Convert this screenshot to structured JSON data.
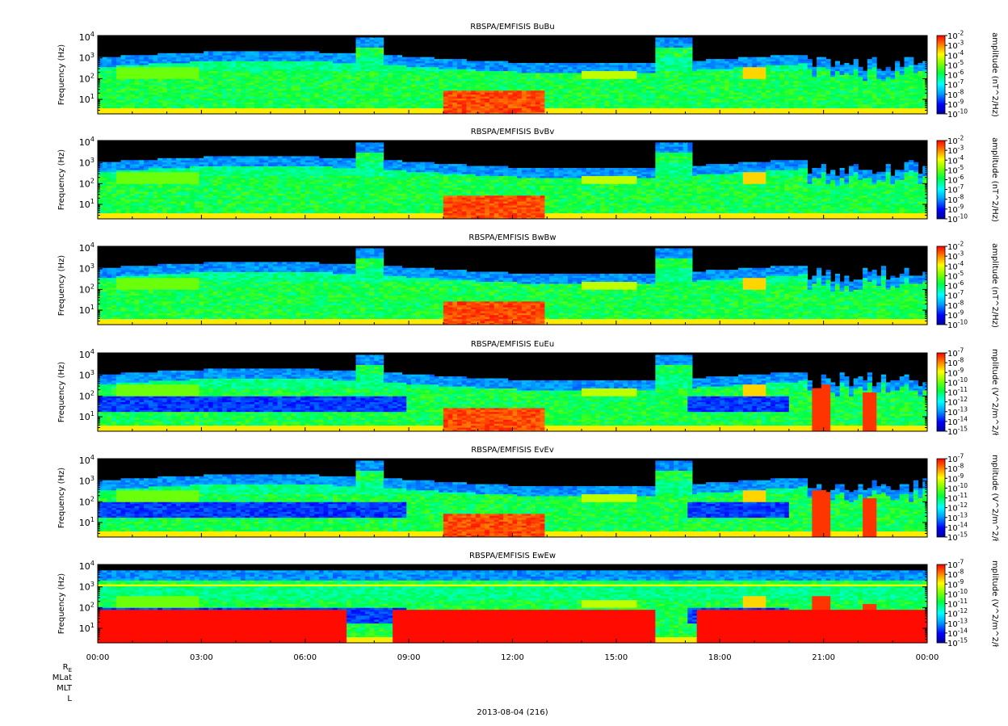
{
  "chart_data": {
    "type": "heatmap",
    "xaxis": {
      "tick_labels": [
        "00:00",
        "03:00",
        "06:00",
        "09:00",
        "12:00",
        "15:00",
        "18:00",
        "21:00",
        "00:00"
      ],
      "range_hours": [
        0,
        24
      ],
      "minor_tick_step_hours": 1,
      "date_label": "2013-08-04 (216)",
      "ephemeris_labels": [
        "R",
        "MLat",
        "MLT",
        "L"
      ],
      "ephemeris_subscript": "E"
    },
    "panels": [
      {
        "title": "RBSPA/EMFISIS  BuBu",
        "ylabel": "Frequency (Hz)",
        "yscale": "log",
        "ylim": [
          2,
          12000
        ],
        "yticks": [
          {
            "base": "10",
            "exp": "1"
          },
          {
            "base": "10",
            "exp": "2"
          },
          {
            "base": "10",
            "exp": "3"
          },
          {
            "base": "10",
            "exp": "4"
          }
        ],
        "colorbar": {
          "label": "amplitude (nT^2/Hz)",
          "ticks": [
            {
              "base": "10",
              "exp": "-2"
            },
            {
              "base": "10",
              "exp": "-3"
            },
            {
              "base": "10",
              "exp": "-4"
            },
            {
              "base": "10",
              "exp": "-5"
            },
            {
              "base": "10",
              "exp": "-6"
            },
            {
              "base": "10",
              "exp": "-7"
            },
            {
              "base": "10",
              "exp": "-8"
            },
            {
              "base": "10",
              "exp": "-9"
            },
            {
              "base": "10",
              "exp": "-10"
            }
          ]
        }
      },
      {
        "title": "RBSPA/EMFISIS  BvBv",
        "ylabel": "Frequency (Hz)",
        "yscale": "log",
        "ylim": [
          2,
          12000
        ],
        "yticks": [
          {
            "base": "10",
            "exp": "1"
          },
          {
            "base": "10",
            "exp": "2"
          },
          {
            "base": "10",
            "exp": "3"
          },
          {
            "base": "10",
            "exp": "4"
          }
        ],
        "colorbar": {
          "label": "amplitude (nT^2/Hz)",
          "ticks": [
            {
              "base": "10",
              "exp": "-2"
            },
            {
              "base": "10",
              "exp": "-3"
            },
            {
              "base": "10",
              "exp": "-4"
            },
            {
              "base": "10",
              "exp": "-5"
            },
            {
              "base": "10",
              "exp": "-6"
            },
            {
              "base": "10",
              "exp": "-7"
            },
            {
              "base": "10",
              "exp": "-8"
            },
            {
              "base": "10",
              "exp": "-9"
            },
            {
              "base": "10",
              "exp": "-10"
            }
          ]
        }
      },
      {
        "title": "RBSPA/EMFISIS  BwBw",
        "ylabel": "Frequency (Hz)",
        "yscale": "log",
        "ylim": [
          2,
          12000
        ],
        "yticks": [
          {
            "base": "10",
            "exp": "1"
          },
          {
            "base": "10",
            "exp": "2"
          },
          {
            "base": "10",
            "exp": "3"
          },
          {
            "base": "10",
            "exp": "4"
          }
        ],
        "colorbar": {
          "label": "amplitude (nT^2/Hz)",
          "ticks": [
            {
              "base": "10",
              "exp": "-2"
            },
            {
              "base": "10",
              "exp": "-3"
            },
            {
              "base": "10",
              "exp": "-4"
            },
            {
              "base": "10",
              "exp": "-5"
            },
            {
              "base": "10",
              "exp": "-6"
            },
            {
              "base": "10",
              "exp": "-7"
            },
            {
              "base": "10",
              "exp": "-8"
            },
            {
              "base": "10",
              "exp": "-9"
            },
            {
              "base": "10",
              "exp": "-10"
            }
          ]
        }
      },
      {
        "title": "RBSPA/EMFISIS  EuEu",
        "ylabel": "Frequency (Hz)",
        "yscale": "log",
        "ylim": [
          2,
          12000
        ],
        "yticks": [
          {
            "base": "10",
            "exp": "1"
          },
          {
            "base": "10",
            "exp": "2"
          },
          {
            "base": "10",
            "exp": "3"
          },
          {
            "base": "10",
            "exp": "4"
          }
        ],
        "colorbar": {
          "label": "mplitude (V^2/m^2/ł",
          "ticks": [
            {
              "base": "10",
              "exp": "-7"
            },
            {
              "base": "10",
              "exp": "-8"
            },
            {
              "base": "10",
              "exp": "-9"
            },
            {
              "base": "10",
              "exp": "-10"
            },
            {
              "base": "10",
              "exp": "-11"
            },
            {
              "base": "10",
              "exp": "-12"
            },
            {
              "base": "10",
              "exp": "-13"
            },
            {
              "base": "10",
              "exp": "-14"
            },
            {
              "base": "10",
              "exp": "-15"
            }
          ]
        }
      },
      {
        "title": "RBSPA/EMFISIS  EvEv",
        "ylabel": "Frequency (Hz)",
        "yscale": "log",
        "ylim": [
          2,
          12000
        ],
        "yticks": [
          {
            "base": "10",
            "exp": "1"
          },
          {
            "base": "10",
            "exp": "2"
          },
          {
            "base": "10",
            "exp": "3"
          },
          {
            "base": "10",
            "exp": "4"
          }
        ],
        "colorbar": {
          "label": "mplitude (V^2/m^2/ł",
          "ticks": [
            {
              "base": "10",
              "exp": "-7"
            },
            {
              "base": "10",
              "exp": "-8"
            },
            {
              "base": "10",
              "exp": "-9"
            },
            {
              "base": "10",
              "exp": "-10"
            },
            {
              "base": "10",
              "exp": "-11"
            },
            {
              "base": "10",
              "exp": "-12"
            },
            {
              "base": "10",
              "exp": "-13"
            },
            {
              "base": "10",
              "exp": "-14"
            },
            {
              "base": "10",
              "exp": "-15"
            }
          ]
        }
      },
      {
        "title": "RBSPA/EMFISIS  EwEw",
        "ylabel": "Frequency (Hz)",
        "yscale": "log",
        "ylim": [
          2,
          12000
        ],
        "yticks": [
          {
            "base": "10",
            "exp": "1"
          },
          {
            "base": "10",
            "exp": "2"
          },
          {
            "base": "10",
            "exp": "3"
          },
          {
            "base": "10",
            "exp": "4"
          }
        ],
        "colorbar": {
          "label": "mplitude (V^2/m^2/ł",
          "ticks": [
            {
              "base": "10",
              "exp": "-7"
            },
            {
              "base": "10",
              "exp": "-8"
            },
            {
              "base": "10",
              "exp": "-9"
            },
            {
              "base": "10",
              "exp": "-10"
            },
            {
              "base": "10",
              "exp": "-11"
            },
            {
              "base": "10",
              "exp": "-12"
            },
            {
              "base": "10",
              "exp": "-13"
            },
            {
              "base": "10",
              "exp": "-14"
            },
            {
              "base": "10",
              "exp": "-15"
            }
          ]
        }
      }
    ]
  }
}
